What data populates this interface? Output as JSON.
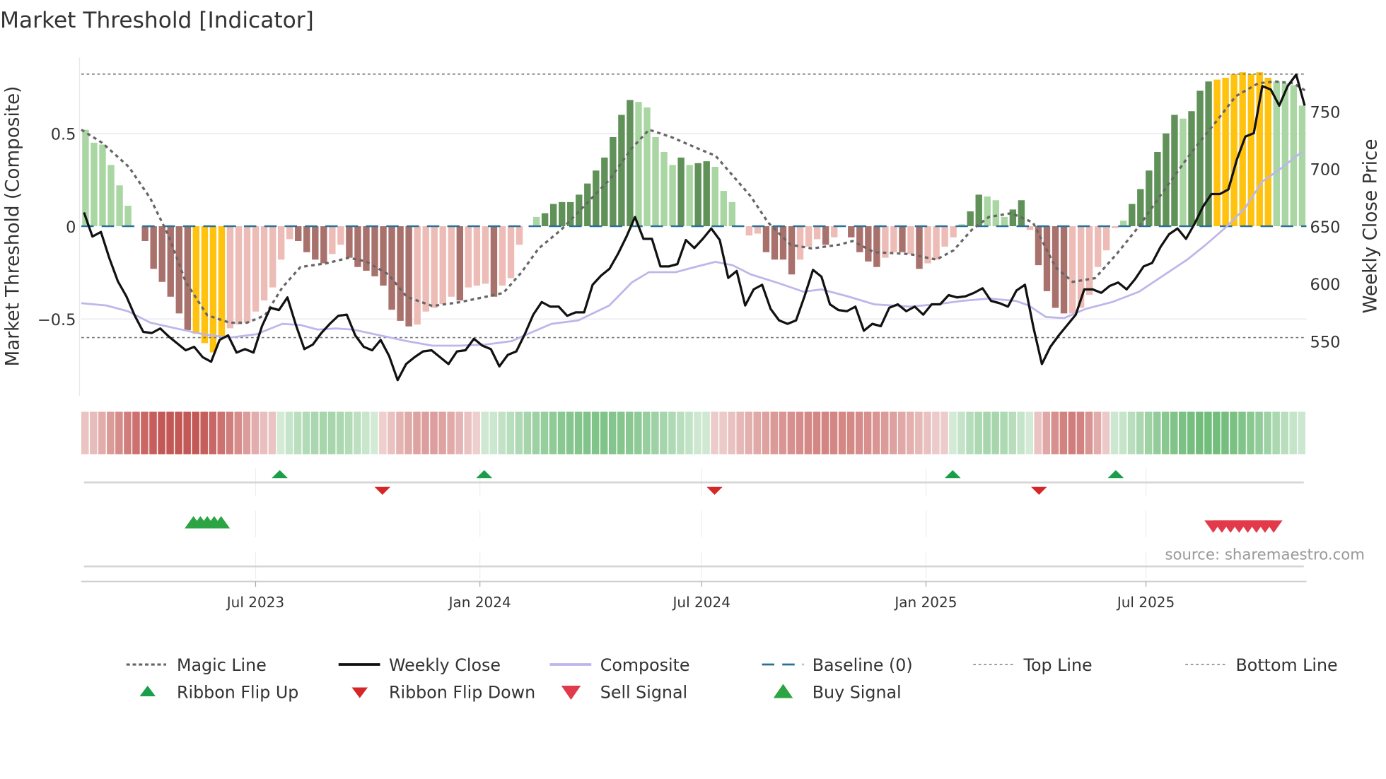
{
  "chart_data": {
    "type": "bar",
    "title": "Market Threshold [Indicator]",
    "ylabel": "Market Threshold (Composite)",
    "y2label": "Weekly Close Price",
    "ylim": [
      -0.92,
      0.92
    ],
    "y2lim": [
      509,
      791
    ],
    "yticks": [
      {
        "v": 0.5,
        "label": "0.5"
      },
      {
        "v": 0,
        "label": "0"
      },
      {
        "v": -0.5,
        "label": "−0.5"
      }
    ],
    "y2ticks": [
      {
        "v": 750,
        "label": "750"
      },
      {
        "v": 700,
        "label": "700"
      },
      {
        "v": 650,
        "label": "650"
      },
      {
        "v": 600,
        "label": "600"
      },
      {
        "v": 550,
        "label": "550"
      }
    ],
    "top_line": 0.82,
    "bottom_line": -0.6,
    "baseline": 0,
    "week_span": 142,
    "xticks": [
      {
        "week": 20.2,
        "label": "Jul 2023"
      },
      {
        "week": 46.2,
        "label": "Jan 2024"
      },
      {
        "week": 71.9,
        "label": "Jul 2024"
      },
      {
        "week": 97.9,
        "label": "Jan 2025"
      },
      {
        "week": 123.4,
        "label": "Jul 2025"
      }
    ],
    "bar_colors": {
      "lg": "#a9d6a3",
      "dg": "#5f9158",
      "lr": "#edbcb6",
      "dr": "#a8716c",
      "y": "#ffc20e"
    },
    "bars": [
      [
        0.52,
        "lg"
      ],
      [
        0.45,
        "lg"
      ],
      [
        0.44,
        "lg"
      ],
      [
        0.33,
        "lg"
      ],
      [
        0.22,
        "lg"
      ],
      [
        0.11,
        "lg"
      ],
      [
        0,
        "lr"
      ],
      [
        -0.08,
        "dr"
      ],
      [
        -0.23,
        "dr"
      ],
      [
        -0.3,
        "dr"
      ],
      [
        -0.38,
        "dr"
      ],
      [
        -0.47,
        "dr"
      ],
      [
        -0.56,
        "dr"
      ],
      [
        -0.58,
        "y"
      ],
      [
        -0.63,
        "y"
      ],
      [
        -0.68,
        "y"
      ],
      [
        -0.6,
        "y"
      ],
      [
        -0.55,
        "lr"
      ],
      [
        -0.53,
        "lr"
      ],
      [
        -0.52,
        "lr"
      ],
      [
        -0.46,
        "lr"
      ],
      [
        -0.4,
        "lr"
      ],
      [
        -0.33,
        "lr"
      ],
      [
        -0.18,
        "lr"
      ],
      [
        -0.07,
        "lr"
      ],
      [
        -0.08,
        "dr"
      ],
      [
        -0.14,
        "dr"
      ],
      [
        -0.18,
        "dr"
      ],
      [
        -0.2,
        "dr"
      ],
      [
        -0.15,
        "lr"
      ],
      [
        -0.1,
        "lr"
      ],
      [
        -0.17,
        "dr"
      ],
      [
        -0.22,
        "dr"
      ],
      [
        -0.24,
        "dr"
      ],
      [
        -0.27,
        "dr"
      ],
      [
        -0.32,
        "dr"
      ],
      [
        -0.45,
        "dr"
      ],
      [
        -0.51,
        "dr"
      ],
      [
        -0.54,
        "dr"
      ],
      [
        -0.53,
        "lr"
      ],
      [
        -0.46,
        "lr"
      ],
      [
        -0.44,
        "lr"
      ],
      [
        -0.42,
        "lr"
      ],
      [
        -0.38,
        "lr"
      ],
      [
        -0.4,
        "dr"
      ],
      [
        -0.33,
        "lr"
      ],
      [
        -0.32,
        "lr"
      ],
      [
        -0.31,
        "lr"
      ],
      [
        -0.38,
        "dr"
      ],
      [
        -0.32,
        "lr"
      ],
      [
        -0.28,
        "lr"
      ],
      [
        -0.1,
        "lr"
      ],
      [
        0,
        "lr"
      ],
      [
        0.05,
        "lg"
      ],
      [
        0.07,
        "dg"
      ],
      [
        0.12,
        "dg"
      ],
      [
        0.13,
        "dg"
      ],
      [
        0.13,
        "dg"
      ],
      [
        0.17,
        "dg"
      ],
      [
        0.23,
        "dg"
      ],
      [
        0.3,
        "dg"
      ],
      [
        0.37,
        "dg"
      ],
      [
        0.48,
        "dg"
      ],
      [
        0.6,
        "dg"
      ],
      [
        0.68,
        "dg"
      ],
      [
        0.67,
        "lg"
      ],
      [
        0.64,
        "lg"
      ],
      [
        0.48,
        "lg"
      ],
      [
        0.4,
        "lg"
      ],
      [
        0.33,
        "lg"
      ],
      [
        0.37,
        "dg"
      ],
      [
        0.33,
        "lg"
      ],
      [
        0.34,
        "dg"
      ],
      [
        0.35,
        "dg"
      ],
      [
        0.32,
        "lg"
      ],
      [
        0.19,
        "lg"
      ],
      [
        0.13,
        "lg"
      ],
      [
        0,
        "lr"
      ],
      [
        -0.05,
        "lr"
      ],
      [
        -0.04,
        "lr"
      ],
      [
        -0.14,
        "dr"
      ],
      [
        -0.18,
        "dr"
      ],
      [
        -0.18,
        "dr"
      ],
      [
        -0.26,
        "dr"
      ],
      [
        -0.18,
        "lr"
      ],
      [
        -0.11,
        "lr"
      ],
      [
        -0.07,
        "lr"
      ],
      [
        -0.1,
        "dr"
      ],
      [
        -0.06,
        "lr"
      ],
      [
        0,
        "lr"
      ],
      [
        -0.06,
        "dr"
      ],
      [
        -0.14,
        "dr"
      ],
      [
        -0.19,
        "dr"
      ],
      [
        -0.22,
        "dr"
      ],
      [
        -0.17,
        "lr"
      ],
      [
        -0.14,
        "lr"
      ],
      [
        -0.14,
        "dr"
      ],
      [
        -0.15,
        "lr"
      ],
      [
        -0.23,
        "dr"
      ],
      [
        -0.2,
        "lr"
      ],
      [
        -0.18,
        "lr"
      ],
      [
        -0.11,
        "lr"
      ],
      [
        -0.06,
        "lr"
      ],
      [
        0.01,
        "lg"
      ],
      [
        0.08,
        "dg"
      ],
      [
        0.17,
        "dg"
      ],
      [
        0.16,
        "lg"
      ],
      [
        0.14,
        "lg"
      ],
      [
        0.05,
        "lg"
      ],
      [
        0.09,
        "dg"
      ],
      [
        0.14,
        "dg"
      ],
      [
        -0.02,
        "lr"
      ],
      [
        -0.21,
        "dr"
      ],
      [
        -0.35,
        "dr"
      ],
      [
        -0.44,
        "dr"
      ],
      [
        -0.47,
        "dr"
      ],
      [
        -0.47,
        "lr"
      ],
      [
        -0.44,
        "lr"
      ],
      [
        -0.37,
        "lr"
      ],
      [
        -0.22,
        "lr"
      ],
      [
        -0.13,
        "lr"
      ],
      [
        -0.01,
        "lr"
      ],
      [
        0.03,
        "lg"
      ],
      [
        0.12,
        "dg"
      ],
      [
        0.2,
        "dg"
      ],
      [
        0.3,
        "dg"
      ],
      [
        0.4,
        "dg"
      ],
      [
        0.5,
        "dg"
      ],
      [
        0.6,
        "dg"
      ],
      [
        0.58,
        "lg"
      ],
      [
        0.62,
        "dg"
      ],
      [
        0.73,
        "dg"
      ],
      [
        0.78,
        "dg"
      ],
      [
        0.79,
        "y"
      ],
      [
        0.8,
        "y"
      ],
      [
        0.82,
        "y"
      ],
      [
        0.83,
        "y"
      ],
      [
        0.82,
        "y"
      ],
      [
        0.83,
        "y"
      ],
      [
        0.8,
        "y"
      ],
      [
        0.78,
        "lg"
      ],
      [
        0.77,
        "lg"
      ],
      [
        0.76,
        "lg"
      ],
      [
        0.65,
        "lg"
      ]
    ],
    "weekly_close": [
      662,
      641,
      645,
      622,
      602,
      589,
      572,
      558,
      557,
      561,
      554,
      548,
      542,
      545,
      536,
      532,
      551,
      555,
      540,
      543,
      540,
      563,
      579,
      577,
      588,
      564,
      543,
      547,
      557,
      565,
      572,
      573,
      555,
      545,
      542,
      551,
      537,
      516,
      530,
      536,
      541,
      542,
      536,
      530,
      541,
      542,
      552,
      546,
      543,
      528,
      538,
      541,
      556,
      573,
      584,
      580,
      580,
      572,
      575,
      575,
      599,
      607,
      613,
      626,
      641,
      658,
      639,
      639,
      615,
      615,
      617,
      638,
      631,
      639,
      648,
      638,
      605,
      611,
      581,
      595,
      599,
      578,
      568,
      565,
      568,
      589,
      612,
      606,
      582,
      577,
      576,
      580,
      559,
      565,
      563,
      579,
      582,
      576,
      580,
      573,
      582,
      582,
      590,
      588,
      589,
      592,
      596,
      585,
      583,
      580,
      594,
      599,
      562,
      530,
      545,
      555,
      564,
      573,
      595,
      595,
      592,
      598,
      601,
      595,
      604,
      615,
      618,
      632,
      643,
      648,
      639,
      652,
      667,
      678,
      678,
      682,
      708,
      728,
      731,
      772,
      769,
      755,
      772,
      782,
      755
    ],
    "magic_line": [
      [
        0,
        0.52
      ],
      [
        2.4,
        0.45
      ],
      [
        5.5,
        0.32
      ],
      [
        8,
        0.15
      ],
      [
        10.1,
        -0.05
      ],
      [
        12.1,
        -0.3
      ],
      [
        14.6,
        -0.48
      ],
      [
        17.2,
        -0.52
      ],
      [
        19.2,
        -0.52
      ],
      [
        21.3,
        -0.48
      ],
      [
        23.3,
        -0.33
      ],
      [
        25.4,
        -0.22
      ],
      [
        28.4,
        -0.2
      ],
      [
        31,
        -0.17
      ],
      [
        33,
        -0.19
      ],
      [
        35.6,
        -0.26
      ],
      [
        37.7,
        -0.38
      ],
      [
        40.7,
        -0.43
      ],
      [
        43.8,
        -0.41
      ],
      [
        46.9,
        -0.38
      ],
      [
        48.9,
        -0.36
      ],
      [
        51,
        -0.25
      ],
      [
        53,
        -0.12
      ],
      [
        55.6,
        -0.02
      ],
      [
        58.1,
        0.1
      ],
      [
        61.2,
        0.25
      ],
      [
        63.8,
        0.42
      ],
      [
        65.8,
        0.52
      ],
      [
        68.4,
        0.48
      ],
      [
        71.4,
        0.42
      ],
      [
        73.5,
        0.38
      ],
      [
        75,
        0.3
      ],
      [
        77.6,
        0.16
      ],
      [
        79.6,
        0.02
      ],
      [
        82.2,
        -0.1
      ],
      [
        84.7,
        -0.12
      ],
      [
        87.8,
        -0.1
      ],
      [
        89.4,
        -0.08
      ],
      [
        91.9,
        -0.14
      ],
      [
        96,
        -0.15
      ],
      [
        99.1,
        -0.18
      ],
      [
        101.1,
        -0.13
      ],
      [
        103.2,
        -0.02
      ],
      [
        105.2,
        0.05
      ],
      [
        107.8,
        0.07
      ],
      [
        110.3,
        0.02
      ],
      [
        112.9,
        -0.22
      ],
      [
        114.9,
        -0.3
      ],
      [
        117.5,
        -0.28
      ],
      [
        120,
        -0.15
      ],
      [
        122.6,
        0
      ],
      [
        125.6,
        0.2
      ],
      [
        128.7,
        0.4
      ],
      [
        131.3,
        0.55
      ],
      [
        133.8,
        0.7
      ],
      [
        136.4,
        0.77
      ],
      [
        138.4,
        0.78
      ],
      [
        140.5,
        0.77
      ],
      [
        141.9,
        0.73
      ]
    ],
    "composite_line": [
      [
        0,
        583
      ],
      [
        2.9,
        581
      ],
      [
        5.4,
        576
      ],
      [
        8,
        566
      ],
      [
        11,
        561
      ],
      [
        14.1,
        556
      ],
      [
        17.2,
        553
      ],
      [
        20.3,
        556
      ],
      [
        23.3,
        565
      ],
      [
        25.4,
        564
      ],
      [
        27.4,
        560
      ],
      [
        29.5,
        561
      ],
      [
        31.5,
        560
      ],
      [
        34.6,
        555
      ],
      [
        37.7,
        550
      ],
      [
        40.7,
        546
      ],
      [
        43.8,
        546
      ],
      [
        46.9,
        547
      ],
      [
        49.9,
        550
      ],
      [
        52,
        557
      ],
      [
        54.5,
        565
      ],
      [
        57.6,
        568
      ],
      [
        61.2,
        581
      ],
      [
        63.8,
        601
      ],
      [
        65.8,
        610
      ],
      [
        68.9,
        610
      ],
      [
        71.4,
        615
      ],
      [
        73.5,
        619
      ],
      [
        75.5,
        616
      ],
      [
        77.6,
        608
      ],
      [
        80.6,
        601
      ],
      [
        83.7,
        593
      ],
      [
        85.8,
        595
      ],
      [
        88.8,
        589
      ],
      [
        91.9,
        582
      ],
      [
        96,
        580
      ],
      [
        99.1,
        582
      ],
      [
        102.1,
        585
      ],
      [
        105.2,
        587
      ],
      [
        108.3,
        585
      ],
      [
        109.8,
        581
      ],
      [
        111.8,
        571
      ],
      [
        113.9,
        570
      ],
      [
        116.4,
        578
      ],
      [
        119.5,
        584
      ],
      [
        122.6,
        593
      ],
      [
        125.6,
        608
      ],
      [
        128.2,
        621
      ],
      [
        130.2,
        633
      ],
      [
        132.8,
        650
      ],
      [
        134.9,
        666
      ],
      [
        136.9,
        689
      ],
      [
        139,
        700
      ],
      [
        141,
        712
      ],
      [
        141.6,
        715
      ]
    ],
    "ribbon_segments": [
      {
        "start": 0,
        "end": 22.6,
        "dir": "down",
        "peak": 0.8
      },
      {
        "start": 22.6,
        "end": 34.4,
        "dir": "up",
        "peak": 0.35
      },
      {
        "start": 34.4,
        "end": 46.4,
        "dir": "down",
        "peak": 0.35
      },
      {
        "start": 46.4,
        "end": 72.9,
        "dir": "up",
        "peak": 0.6
      },
      {
        "start": 72.9,
        "end": 100.6,
        "dir": "down",
        "peak": 0.5
      },
      {
        "start": 100.6,
        "end": 110.3,
        "dir": "up",
        "peak": 0.35
      },
      {
        "start": 110.3,
        "end": 119.3,
        "dir": "down",
        "peak": 0.55
      },
      {
        "start": 119.3,
        "end": 142,
        "dir": "up",
        "peak": 0.7
      }
    ],
    "ribbon_flip_up": [
      23,
      46.7,
      101,
      119.9
    ],
    "ribbon_flip_down": [
      34.9,
      73.4,
      111
    ],
    "buy_signals": [
      13,
      13.8,
      14.6,
      15.4,
      16.2
    ],
    "sell_signals": [
      131.2,
      132.2,
      133.2,
      134.2,
      135.2,
      136.2,
      137.2,
      138.2
    ],
    "colors": {
      "close": "#111111",
      "magic": "#666666",
      "composite": "#bdb6ea",
      "baseline": "#2a6f97",
      "flip_up": "#1a9e4a",
      "flip_down": "#d62728",
      "buy": "#2ca444",
      "sell": "#e23a4a",
      "ribbon_up": "#5fb46a",
      "ribbon_down": "#c0504d"
    },
    "legend": [
      {
        "label": "Magic Line",
        "icon": "dotted-line"
      },
      {
        "label": "Weekly Close",
        "icon": "solid-line"
      },
      {
        "label": "Composite",
        "icon": "solid-line-lavender"
      },
      {
        "label": "Baseline (0)",
        "icon": "dashed-line"
      },
      {
        "label": "Top Line",
        "icon": "dotted-line-thin"
      },
      {
        "label": "Bottom Line",
        "icon": "dotted-line-thin"
      },
      {
        "label": "Ribbon Flip Up",
        "icon": "triangle-up"
      },
      {
        "label": "Ribbon Flip Down",
        "icon": "triangle-down"
      },
      {
        "label": "Sell Signal",
        "icon": "triangle-down"
      },
      {
        "label": "Buy Signal",
        "icon": "triangle-up"
      }
    ],
    "source": "source: sharemaestro.com"
  }
}
